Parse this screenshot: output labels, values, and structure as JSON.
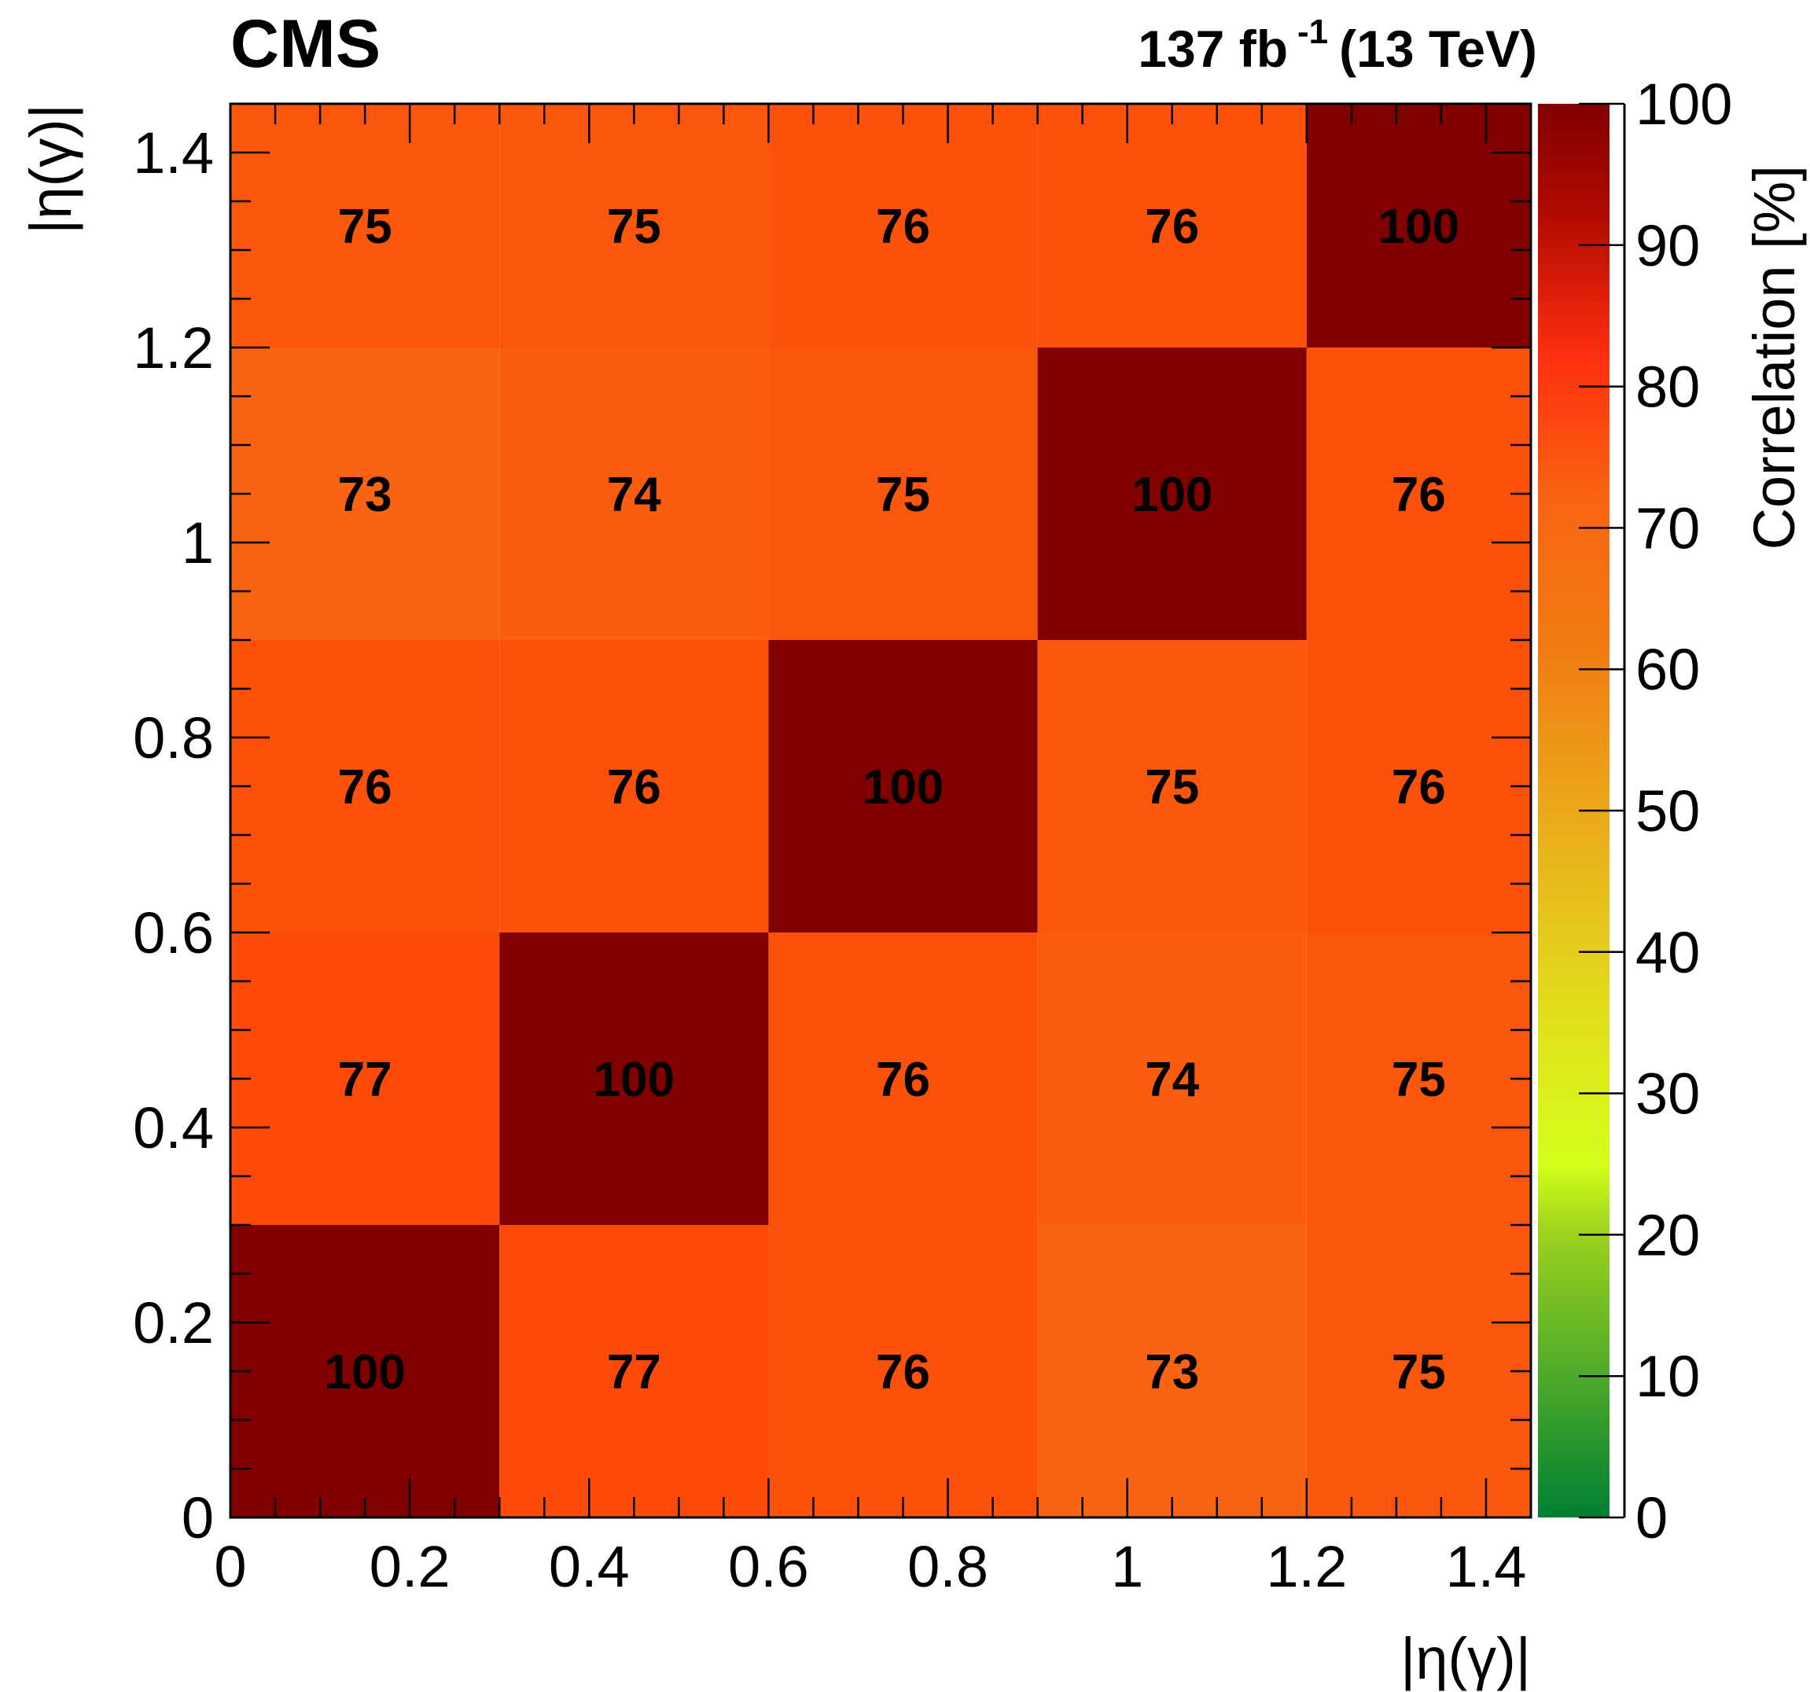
{
  "header": {
    "experiment": "CMS",
    "lumi_value": "137 fb",
    "lumi_exp": "-1",
    "energy": "(13 TeV)"
  },
  "chart_data": {
    "type": "heatmap",
    "xlabel": "|η(γ)|",
    "ylabel": "|η(γ)|",
    "zlabel": "Correlation [%]",
    "xlim": [
      0,
      1.45
    ],
    "ylim": [
      0,
      1.45
    ],
    "zlim": [
      0,
      100
    ],
    "bin_edges": [
      0,
      0.3,
      0.6,
      0.9,
      1.2,
      1.45
    ],
    "x_ticks": [
      "0",
      "0.2",
      "0.4",
      "0.6",
      "0.8",
      "1",
      "1.2",
      "1.4"
    ],
    "y_ticks": [
      "0",
      "0.2",
      "0.4",
      "0.6",
      "0.8",
      "1",
      "1.2",
      "1.4"
    ],
    "z_ticks": [
      "0",
      "10",
      "20",
      "30",
      "40",
      "50",
      "60",
      "70",
      "80",
      "90",
      "100"
    ],
    "matrix": [
      [
        100,
        77,
        76,
        73,
        75
      ],
      [
        77,
        100,
        76,
        74,
        75
      ],
      [
        76,
        76,
        100,
        75,
        76
      ],
      [
        73,
        74,
        75,
        100,
        76
      ],
      [
        75,
        75,
        76,
        76,
        100
      ]
    ],
    "colors": {
      "diagonal": "#800000",
      "v73": "#f96412",
      "v74": "#fa5d0f",
      "v75": "#fa570c",
      "v76": "#fb510a",
      "v77": "#fc4b08"
    }
  }
}
